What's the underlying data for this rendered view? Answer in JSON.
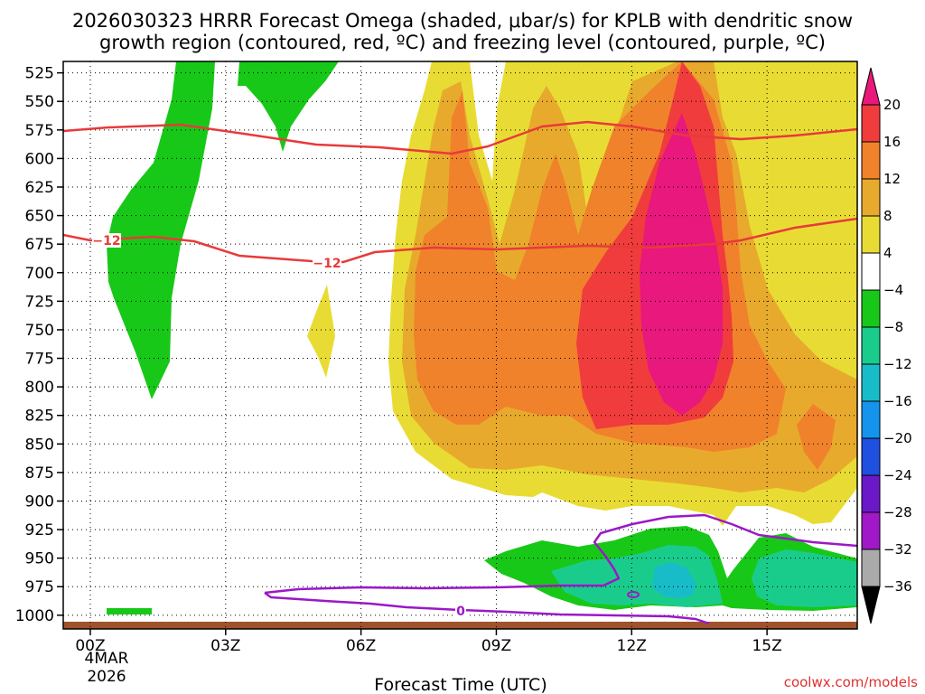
{
  "chart_data": {
    "type": "contour",
    "title_line1": "2026030323 HRRR Forecast Omega (shaded, μbar/s) for KPLB with dendritic snow",
    "title_line2": "growth region (contoured, red, ºC) and freezing level (contoured, purple, ºC)",
    "xlabel": "Forecast Time (UTC)",
    "date_label": [
      "4MAR",
      "2026"
    ],
    "x_ticks": [
      {
        "hour": 0,
        "label": "00Z"
      },
      {
        "hour": 3,
        "label": "03Z"
      },
      {
        "hour": 6,
        "label": "06Z"
      },
      {
        "hour": 9,
        "label": "09Z"
      },
      {
        "hour": 12,
        "label": "12Z"
      },
      {
        "hour": 15,
        "label": "15Z"
      }
    ],
    "x_range_hours": [
      -0.6,
      17
    ],
    "y_ticks_mb": [
      "525",
      "550",
      "575",
      "600",
      "625",
      "650",
      "675",
      "700",
      "725",
      "750",
      "775",
      "800",
      "825",
      "850",
      "875",
      "900",
      "925",
      "950",
      "975",
      "1000"
    ],
    "y_range_mb": [
      515,
      1012
    ],
    "colorbar_levels": [
      "20",
      "16",
      "12",
      "8",
      "4",
      "−4",
      "−8",
      "−12",
      "−16",
      "−20",
      "−24",
      "−28",
      "−32",
      "−36"
    ],
    "colorbar_colors": [
      "#e8187c",
      "#f03c3c",
      "#f0822c",
      "#e8aa2c",
      "#e8dc34",
      "#ffffff",
      "#18c818",
      "#1acc8c",
      "#18bcc8",
      "#1494ec",
      "#2050e0",
      "#6a18c8",
      "#a018c8",
      "#aaaaaa",
      "#000000"
    ],
    "contours": {
      "dgz_top_label": "",
      "dgz_bottom_label": "−12",
      "freezing_level_label": "0"
    },
    "omega_regions": [
      {
        "level": "4",
        "desc": "ascent envelope 06Z-17Z, 525-900 mb"
      },
      {
        "level": "8",
        "desc": "07Z-16Z, 525-870 mb"
      },
      {
        "level": "12",
        "desc": "07Z-16Z, 550-840 mb"
      },
      {
        "level": "16",
        "desc": "11Z-14Z, 525-800 mb"
      },
      {
        "level": "20",
        "desc": "12Z-14Z max, 575-790 mb"
      },
      {
        "level": "-4",
        "desc": "descent 00Z-02Z, 525-780 mb; low levels 09Z-17Z, 925-990 mb"
      },
      {
        "level": "-8",
        "desc": "11Z-17Z, 940-990 mb"
      },
      {
        "level": "-12",
        "desc": "12Z-13Z near 960 mb"
      }
    ],
    "credit": "coolwx.com/models"
  }
}
